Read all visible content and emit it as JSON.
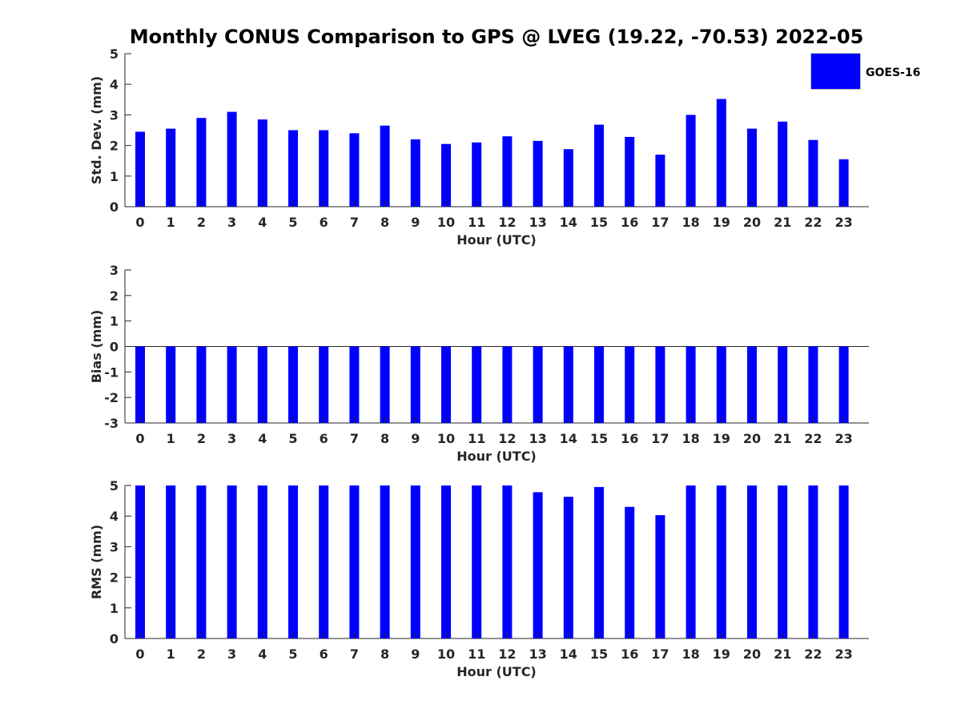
{
  "chart_data": {
    "type": "bar",
    "title": "Monthly CONUS Comparison to GPS @ LVEG (19.22, -70.53) 2022-05",
    "legend": {
      "label": "GOES-16",
      "color": "#0000ff",
      "position": "top-right"
    },
    "categories": [
      "0",
      "1",
      "2",
      "3",
      "4",
      "5",
      "6",
      "7",
      "8",
      "9",
      "10",
      "11",
      "12",
      "13",
      "14",
      "15",
      "16",
      "17",
      "18",
      "19",
      "20",
      "21",
      "22",
      "23"
    ],
    "panels": [
      {
        "id": "std",
        "ylabel": "Std. Dev. (mm)",
        "xlabel": "Hour (UTC)",
        "ylim": [
          0,
          5
        ],
        "yticks": [
          "0",
          "1",
          "2",
          "3",
          "4",
          "5"
        ],
        "values": [
          2.45,
          2.55,
          2.9,
          3.1,
          2.85,
          2.5,
          2.5,
          2.4,
          2.65,
          2.2,
          2.05,
          2.1,
          2.3,
          2.15,
          1.88,
          2.68,
          2.28,
          1.7,
          3.0,
          3.52,
          2.55,
          2.78,
          2.18,
          1.55
        ],
        "color": "#0000ff"
      },
      {
        "id": "bias",
        "ylabel": "Bias (mm)",
        "xlabel": "Hour (UTC)",
        "ylim": [
          -3,
          3
        ],
        "yticks": [
          "-3",
          "-2",
          "-1",
          "0",
          "1",
          "2",
          "3"
        ],
        "values": [
          -3,
          -3,
          -3,
          -3,
          -3,
          -3,
          -3,
          -3,
          -3,
          -3,
          -3,
          -3,
          -3,
          -3,
          -3,
          -3,
          -3,
          -3,
          -3,
          -3,
          -3,
          -3,
          -3,
          -3
        ],
        "color": "#0000ff"
      },
      {
        "id": "rms",
        "ylabel": "RMS (mm)",
        "xlabel": "Hour (UTC)",
        "ylim": [
          0,
          5
        ],
        "yticks": [
          "0",
          "1",
          "2",
          "3",
          "4",
          "5"
        ],
        "values": [
          5,
          5,
          5,
          5,
          5,
          5,
          5,
          5,
          5,
          5,
          5,
          5,
          5,
          4.78,
          4.63,
          4.95,
          4.3,
          4.03,
          5,
          5,
          5,
          5,
          5,
          5
        ],
        "color": "#0000ff"
      }
    ]
  }
}
